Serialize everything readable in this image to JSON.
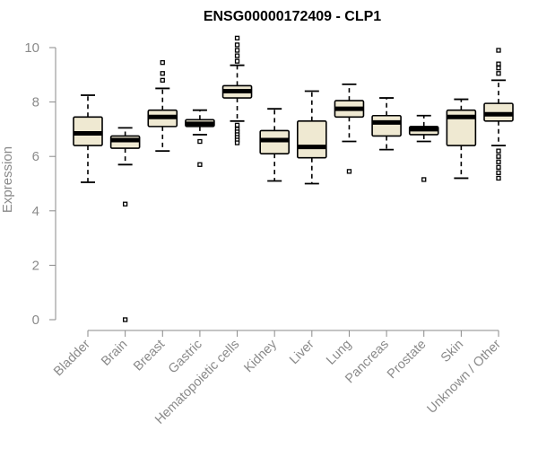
{
  "chart_data": {
    "type": "boxplot",
    "title": "ENSG00000172409 - CLP1",
    "xlabel": "",
    "ylabel": "Expression",
    "ylim": [
      0,
      10
    ],
    "yticks": [
      0,
      2,
      4,
      6,
      8,
      10
    ],
    "grid": false,
    "legend": "none",
    "colors": {
      "box_fill": "#efe9d2",
      "box_stroke": "#000000",
      "axis": "#8a8a8a",
      "median": "#000000"
    },
    "categories": [
      "Bladder",
      "Brain",
      "Breast",
      "Gastric",
      "Hematopoietic cells",
      "Kidney",
      "Liver",
      "Lung",
      "Pancreas",
      "Prostate",
      "Skin",
      "Unknown / Other"
    ],
    "boxes": [
      {
        "category": "Bladder",
        "whisker_low": 5.05,
        "q1": 6.4,
        "median": 6.85,
        "q3": 7.45,
        "whisker_high": 8.25,
        "outliers": []
      },
      {
        "category": "Brain",
        "whisker_low": 5.7,
        "q1": 6.3,
        "median": 6.6,
        "q3": 6.75,
        "whisker_high": 7.05,
        "outliers": [
          4.25,
          0.0
        ]
      },
      {
        "category": "Breast",
        "whisker_low": 6.2,
        "q1": 7.1,
        "median": 7.45,
        "q3": 7.7,
        "whisker_high": 8.5,
        "outliers": [
          8.8,
          9.05,
          9.45
        ]
      },
      {
        "category": "Gastric",
        "whisker_low": 6.8,
        "q1": 7.1,
        "median": 7.2,
        "q3": 7.35,
        "whisker_high": 7.7,
        "outliers": [
          6.55,
          5.7
        ]
      },
      {
        "category": "Hematopoietic cells",
        "whisker_low": 7.3,
        "q1": 8.15,
        "median": 8.4,
        "q3": 8.6,
        "whisker_high": 9.35,
        "outliers": [
          9.5,
          9.7,
          9.9,
          10.1,
          10.35,
          7.15,
          7.0,
          6.9,
          6.8,
          6.7,
          6.6,
          6.5
        ]
      },
      {
        "category": "Kidney",
        "whisker_low": 5.1,
        "q1": 6.1,
        "median": 6.6,
        "q3": 6.95,
        "whisker_high": 7.75,
        "outliers": []
      },
      {
        "category": "Liver",
        "whisker_low": 5.0,
        "q1": 5.95,
        "median": 6.35,
        "q3": 7.3,
        "whisker_high": 8.4,
        "outliers": []
      },
      {
        "category": "Lung",
        "whisker_low": 6.55,
        "q1": 7.45,
        "median": 7.75,
        "q3": 8.05,
        "whisker_high": 8.65,
        "outliers": [
          5.45
        ]
      },
      {
        "category": "Pancreas",
        "whisker_low": 6.25,
        "q1": 6.75,
        "median": 7.25,
        "q3": 7.5,
        "whisker_high": 8.15,
        "outliers": []
      },
      {
        "category": "Prostate",
        "whisker_low": 6.55,
        "q1": 6.8,
        "median": 7.0,
        "q3": 7.1,
        "whisker_high": 7.5,
        "outliers": [
          5.15
        ]
      },
      {
        "category": "Skin",
        "whisker_low": 5.2,
        "q1": 6.4,
        "median": 7.45,
        "q3": 7.7,
        "whisker_high": 8.1,
        "outliers": []
      },
      {
        "category": "Unknown / Other",
        "whisker_low": 6.4,
        "q1": 7.3,
        "median": 7.55,
        "q3": 7.95,
        "whisker_high": 8.8,
        "outliers": [
          9.05,
          9.25,
          9.4,
          9.9,
          6.2,
          6.0,
          5.8,
          5.6,
          5.4,
          5.2
        ]
      }
    ]
  }
}
